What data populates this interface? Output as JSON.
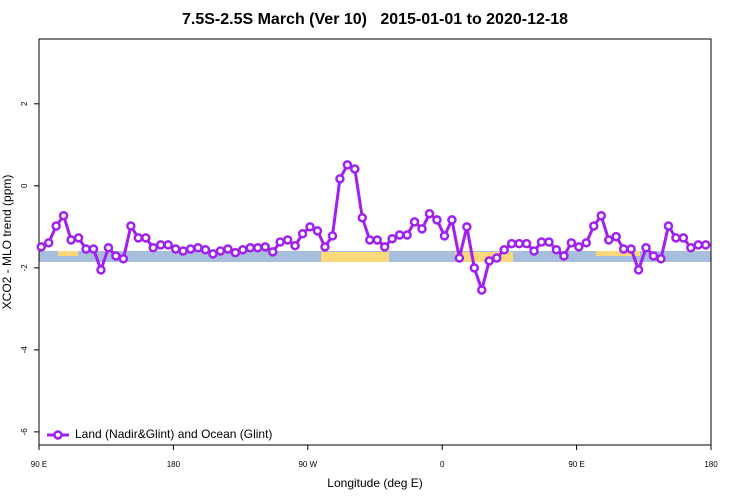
{
  "chart_data": {
    "type": "line",
    "title": "7.5S-2.5S March (Ver 10)   2015-01-01 to 2020-12-18",
    "x_label": "Longitude (deg E)",
    "y_label": "XCO2 - MLO trend (ppm)",
    "xlim": [
      90,
      540
    ],
    "ylim": [
      -6.32,
      3.58
    ],
    "xticks": [
      {
        "value": 90,
        "label": "90 E"
      },
      180,
      {
        "value": 270,
        "label": "90 W"
      },
      {
        "value": 360,
        "label": "0"
      },
      {
        "value": 450,
        "label": "90 E"
      },
      {
        "value": 540,
        "label": "180"
      }
    ],
    "yticks": [
      -6,
      -4,
      -2,
      0,
      2
    ],
    "legend": "bottomleft",
    "x": [
      91.5,
      96.5,
      101.5,
      106.5,
      111.5,
      116.5,
      121.5,
      126.5,
      131.5,
      136.5,
      141.5,
      146.5,
      151.5,
      156.5,
      161.5,
      166.5,
      171.5,
      176.5,
      181.5,
      186.5,
      191.5,
      196.5,
      201.5,
      206.5,
      211.5,
      216.5,
      221.5,
      226.5,
      231.5,
      236.5,
      241.5,
      246.5,
      251.5,
      256.5,
      261.5,
      266.5,
      271.5,
      276.5,
      281.5,
      286.5,
      291.5,
      296.5,
      301.5,
      306.5,
      311.5,
      316.5,
      321.5,
      326.5,
      331.5,
      336.5,
      341.5,
      346.5,
      351.5,
      356.5,
      361.5,
      366.5,
      371.5,
      376.5,
      381.5,
      386.5,
      391.5,
      396.5,
      401.5,
      406.5,
      411.5,
      416.5,
      421.5,
      426.5,
      431.5,
      436.5,
      441.5,
      446.5,
      451.5,
      456.5,
      461.5,
      466.5,
      471.5,
      476.5,
      481.5,
      486.5,
      491.5,
      496.5,
      501.5,
      506.5,
      511.5,
      516.5,
      521.5,
      526.5,
      531.5,
      536.5
    ],
    "series": [
      {
        "name": "Land (Nadir&Glint) and Ocean (Glint)",
        "color": "#a020f0",
        "values": [
          -1.49,
          -1.39,
          -0.98,
          -0.73,
          -1.32,
          -1.27,
          -1.54,
          -1.54,
          -2.05,
          -1.51,
          -1.71,
          -1.78,
          -0.98,
          -1.27,
          -1.27,
          -1.51,
          -1.44,
          -1.44,
          -1.54,
          -1.59,
          -1.54,
          -1.51,
          -1.56,
          -1.66,
          -1.59,
          -1.54,
          -1.63,
          -1.56,
          -1.51,
          -1.51,
          -1.49,
          -1.61,
          -1.37,
          -1.32,
          -1.46,
          -1.17,
          -1.0,
          -1.1,
          -1.49,
          -1.22,
          0.17,
          0.51,
          0.41,
          -0.78,
          -1.32,
          -1.32,
          -1.49,
          -1.29,
          -1.2,
          -1.2,
          -0.88,
          -1.05,
          -0.68,
          -0.83,
          -1.22,
          -0.83,
          -1.76,
          -1.0,
          -2.0,
          -2.54,
          -1.83,
          -1.76,
          -1.56,
          -1.41,
          -1.41,
          -1.41,
          -1.59,
          -1.37,
          -1.37,
          -1.56,
          -1.71,
          -1.39,
          -1.49,
          -1.39,
          -0.98,
          -0.73,
          -1.32,
          -1.24,
          -1.54,
          -1.54,
          -2.05,
          -1.51,
          -1.71,
          -1.78,
          -0.98,
          -1.27,
          -1.27,
          -1.51,
          -1.44,
          -1.44
        ]
      }
    ]
  }
}
